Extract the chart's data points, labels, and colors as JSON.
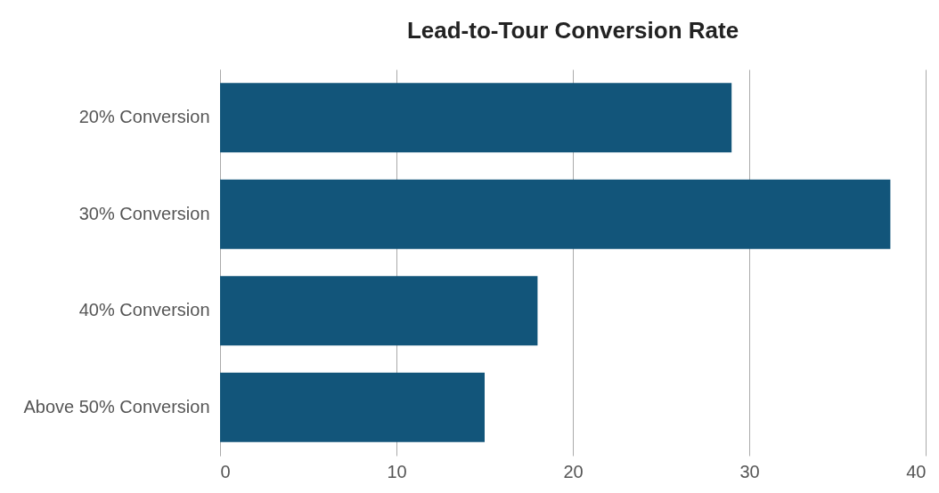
{
  "chart_data": {
    "type": "bar",
    "orientation": "horizontal",
    "title": "Lead-to-Tour Conversion Rate",
    "categories": [
      "20% Conversion",
      "30% Conversion",
      "40% Conversion",
      "Above 50% Conversion"
    ],
    "values": [
      29,
      38,
      18,
      15
    ],
    "color": "#12557a",
    "xlim": [
      0,
      40
    ],
    "xticks": [
      0,
      10,
      20,
      30,
      40
    ],
    "grid": "x"
  }
}
